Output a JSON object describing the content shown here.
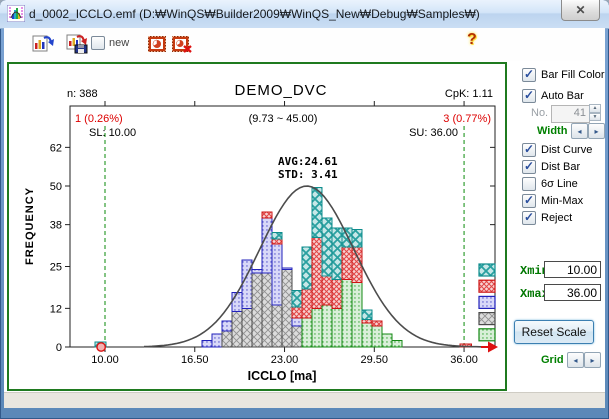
{
  "window": {
    "title": "d_0002_ICCLO.emf (D:₩WinQS₩Builder2009₩WinQS_New₩Debug₩Samples₩)",
    "close_glyph": "✕"
  },
  "toolbar": {
    "new_label": "new",
    "new_checked": false,
    "help_glyph": "?"
  },
  "right_panel": {
    "top_checkboxes": [
      {
        "label": "Bar Fill Color",
        "checked": true
      },
      {
        "label": "Auto Bar",
        "checked": true
      }
    ],
    "no_label": "No.",
    "no_value": "41",
    "width_label": "Width",
    "options": [
      {
        "label": "Dist Curve",
        "checked": true
      },
      {
        "label": "Dist Bar",
        "checked": true
      },
      {
        "label": "6σ Line",
        "checked": false
      },
      {
        "label": "Min-Max",
        "checked": true
      },
      {
        "label": "Reject",
        "checked": true
      }
    ],
    "xmin_label": "Xmin",
    "xmin_value": "10.00",
    "xmax_label": "Xmax",
    "xmax_value": "36.00",
    "reset_button": "Reset Scale",
    "grid_label": "Grid",
    "arrow_left": "◂",
    "arrow_right": "▸",
    "spin_up": "▲",
    "spin_down": "▼"
  },
  "chart_data": {
    "type": "bar",
    "subtype": "stacked-histogram-with-normal-curve",
    "title": "DEMO_DVC",
    "xlabel": "ICCLO [ma]",
    "ylabel": "FREQUENCY",
    "sample_count_label": "n: 388",
    "cpk_label": "CpK: 1.11",
    "below_sl_label": "1 (0.26%)",
    "data_range_label": "(9.73 ~ 45.00)",
    "above_su_label": "3 (0.77%)",
    "sl_label": "SL: 10.00",
    "su_label": "SU: 36.00",
    "avg_label": "AVG:24.61",
    "std_label": "STD: 3.41",
    "sl": 10.0,
    "su": 36.0,
    "xlim": [
      7.5,
      38.2
    ],
    "ylim": [
      0,
      74
    ],
    "x_ticks": [
      "10.00",
      "16.50",
      "23.00",
      "29.50",
      "36.00"
    ],
    "x_tick_values": [
      10,
      16.5,
      23,
      29.5,
      36
    ],
    "y_ticks": [
      0,
      12,
      25,
      38,
      50,
      62
    ],
    "curve": {
      "mean": 24.61,
      "std": 3.41,
      "peak": 50,
      "color": "#4c4c4c"
    },
    "sl_su_line_color": "#0a8a0a",
    "reject_color": "#dd1111",
    "series": {
      "gray": {
        "fill": "#dcdcdc",
        "stroke": "#4a4a4a",
        "mark": "#909090",
        "pattern": "cross"
      },
      "blue": {
        "fill": "#d8d8f8",
        "stroke": "#2222bb",
        "mark": "#5555cc",
        "pattern": "dots"
      },
      "red": {
        "fill": "#f8d2d2",
        "stroke": "#cc1515",
        "mark": "#e04545",
        "pattern": "diag"
      },
      "green": {
        "fill": "#d8efd8",
        "stroke": "#158815",
        "mark": "#3aa83a",
        "pattern": "dots"
      },
      "cyan": {
        "fill": "#c6e7e7",
        "stroke": "#0e8c8c",
        "mark": "#2aa0a0",
        "pattern": "diamond"
      }
    },
    "legend_order": [
      "cyan",
      "red",
      "blue",
      "gray",
      "green"
    ],
    "bin_width": 0.72,
    "bars": [
      {
        "x0": 9.28,
        "w": 0.8,
        "segments": [
          [
            "cyan",
            1.5
          ]
        ]
      },
      {
        "x0": 17.02,
        "segments": [
          [
            "blue",
            2
          ]
        ]
      },
      {
        "x0": 17.75,
        "segments": [
          [
            "blue",
            4
          ]
        ]
      },
      {
        "x0": 18.47,
        "segments": [
          [
            "gray",
            5
          ],
          [
            "blue",
            3
          ]
        ]
      },
      {
        "x0": 19.2,
        "segments": [
          [
            "gray",
            11
          ],
          [
            "blue",
            6
          ]
        ]
      },
      {
        "x0": 19.92,
        "segments": [
          [
            "gray",
            12
          ],
          [
            "blue",
            15
          ]
        ]
      },
      {
        "x0": 20.64,
        "segments": [
          [
            "gray",
            23
          ],
          [
            "blue",
            1
          ]
        ]
      },
      {
        "x0": 21.37,
        "segments": [
          [
            "gray",
            23
          ],
          [
            "blue",
            17
          ],
          [
            "red",
            2
          ]
        ]
      },
      {
        "x0": 22.09,
        "segments": [
          [
            "gray",
            13
          ],
          [
            "blue",
            19
          ],
          [
            "red",
            1.5
          ],
          [
            "cyan",
            2
          ]
        ]
      },
      {
        "x0": 22.82,
        "segments": [
          [
            "gray",
            24
          ],
          [
            "blue",
            0.5
          ]
        ]
      },
      {
        "x0": 23.54,
        "segments": [
          [
            "gray",
            6.5
          ],
          [
            "blue",
            2.5
          ],
          [
            "red",
            3.5
          ],
          [
            "cyan",
            5
          ]
        ]
      },
      {
        "x0": 24.26,
        "segments": [
          [
            "green",
            9
          ],
          [
            "red",
            9
          ],
          [
            "cyan",
            13
          ]
        ]
      },
      {
        "x0": 24.99,
        "segments": [
          [
            "green",
            12
          ],
          [
            "red",
            22
          ],
          [
            "cyan",
            15.5
          ]
        ]
      },
      {
        "x0": 25.71,
        "segments": [
          [
            "green",
            13
          ],
          [
            "red",
            9
          ],
          [
            "cyan",
            18
          ]
        ]
      },
      {
        "x0": 26.44,
        "segments": [
          [
            "green",
            12
          ],
          [
            "red",
            9
          ],
          [
            "cyan",
            16
          ]
        ]
      },
      {
        "x0": 27.16,
        "segments": [
          [
            "green",
            21
          ],
          [
            "red",
            10
          ],
          [
            "cyan",
            6
          ]
        ]
      },
      {
        "x0": 27.88,
        "segments": [
          [
            "green",
            20
          ],
          [
            "red",
            11
          ],
          [
            "cyan",
            5.5
          ]
        ]
      },
      {
        "x0": 28.61,
        "segments": [
          [
            "green",
            7.5
          ],
          [
            "red",
            1
          ],
          [
            "cyan",
            3
          ]
        ]
      },
      {
        "x0": 29.33,
        "segments": [
          [
            "green",
            6.5
          ],
          [
            "red",
            1.5
          ]
        ]
      },
      {
        "x0": 30.06,
        "segments": [
          [
            "green",
            4
          ]
        ]
      },
      {
        "x0": 30.78,
        "segments": [
          [
            "green",
            2
          ]
        ]
      },
      {
        "x0": 35.7,
        "w": 0.85,
        "segments": [
          [
            "red",
            1
          ]
        ]
      }
    ],
    "reject_point_x": 9.72
  }
}
